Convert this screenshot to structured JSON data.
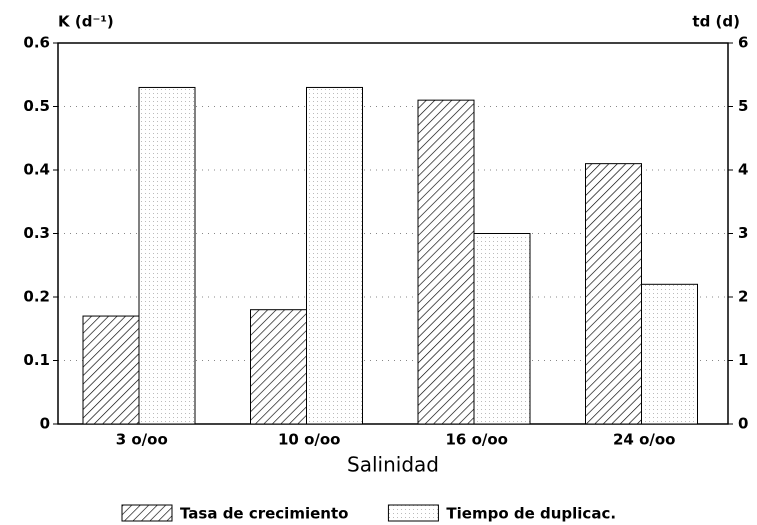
{
  "chart_data": {
    "type": "bar",
    "y_label": "K (d⁻¹)",
    "y2_label": "td (d)",
    "x_label": "Salinidad",
    "categories": [
      "3  o/oo",
      "10 o/oo",
      "16 o/oo",
      "24 o/oo"
    ],
    "series": [
      {
        "name": "Tasa de crecimiento",
        "color": "#000000",
        "pattern": "hatch",
        "values": [
          0.17,
          0.18,
          0.51,
          0.41
        ]
      },
      {
        "name": "Tiempo de duplicac.",
        "color": "#000000",
        "pattern": "dots",
        "axis": "y2",
        "values": [
          5.3,
          5.3,
          3.0,
          2.2
        ]
      }
    ],
    "ylim": [
      0,
      0.6
    ],
    "yticks": [
      0,
      0.1,
      0.2,
      0.3,
      0.4,
      0.5,
      0.6
    ],
    "y2lim": [
      0,
      6
    ],
    "y2ticks": [
      0,
      1,
      2,
      3,
      4,
      5,
      6
    ],
    "grid": true,
    "legend": "bottom"
  }
}
